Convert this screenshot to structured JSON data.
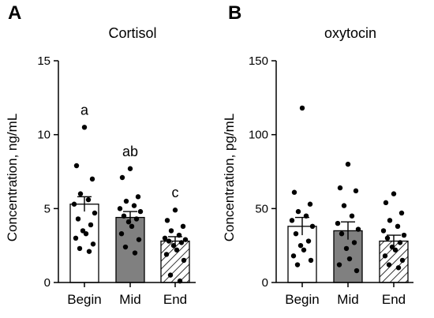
{
  "chart_data": [
    {
      "type": "bar",
      "panel": "A",
      "title": "Cortisol",
      "xlabel": "",
      "ylabel": "Concentration, ng/mL",
      "ylim": [
        0,
        15
      ],
      "yticks": [
        0,
        5,
        10,
        15
      ],
      "categories": [
        "Begin",
        "Mid",
        "End"
      ],
      "values": [
        5.3,
        4.4,
        2.8
      ],
      "sem": [
        0.5,
        0.4,
        0.3
      ],
      "significance": [
        "a",
        "ab",
        "c"
      ],
      "fills": [
        "#ffffff",
        "#808080",
        "hatch"
      ],
      "points": [
        [
          10.5,
          7.9,
          7.0,
          6.0,
          5.6,
          5.3,
          4.7,
          4.3,
          3.9,
          3.5,
          3.3,
          3.0,
          2.6,
          2.3,
          2.1
        ],
        [
          7.7,
          7.1,
          5.8,
          5.5,
          5.2,
          5.0,
          4.8,
          4.5,
          4.3,
          4.1,
          3.8,
          3.3,
          2.9,
          2.4,
          2.0
        ],
        [
          4.9,
          4.2,
          3.8,
          3.5,
          3.2,
          3.0,
          2.9,
          2.8,
          2.7,
          2.5,
          2.2,
          1.9,
          1.5,
          0.5,
          0.1
        ]
      ],
      "grid": false
    },
    {
      "type": "bar",
      "panel": "B",
      "title": "oxytocin",
      "xlabel": "",
      "ylabel": "Concentration, pg/mL",
      "ylim": [
        0,
        150
      ],
      "yticks": [
        0,
        50,
        100,
        150
      ],
      "categories": [
        "Begin",
        "Mid",
        "End"
      ],
      "values": [
        38,
        35,
        28
      ],
      "sem": [
        6,
        6,
        4
      ],
      "significance": [],
      "fills": [
        "#ffffff",
        "#808080",
        "hatch"
      ],
      "points": [
        [
          118,
          61,
          53,
          48,
          45,
          42,
          38,
          33,
          28,
          25,
          22,
          18,
          15,
          12
        ],
        [
          80,
          64,
          62,
          52,
          45,
          40,
          36,
          33,
          27,
          23,
          16,
          12,
          8
        ],
        [
          60,
          54,
          47,
          42,
          38,
          35,
          32,
          30,
          27,
          24,
          22,
          18,
          15,
          12,
          10
        ]
      ],
      "grid": false
    }
  ]
}
